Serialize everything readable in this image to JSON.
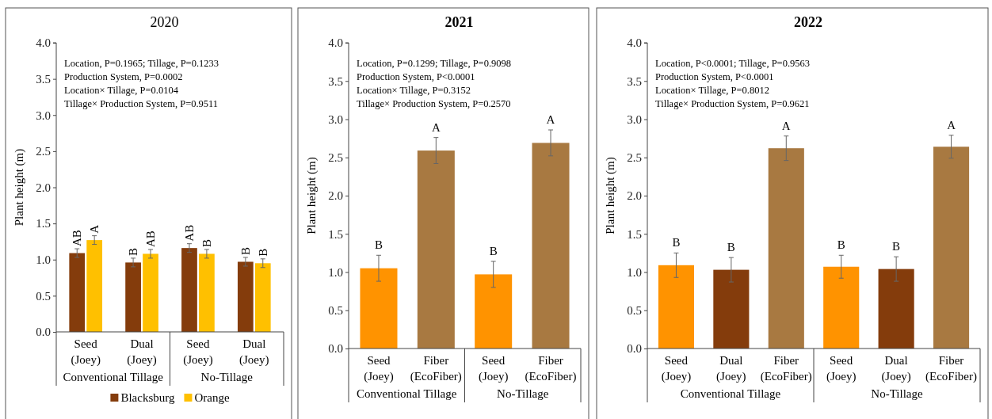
{
  "chart_data": [
    {
      "type": "bar",
      "title": "2020",
      "ylabel": "Plant height (m)",
      "categories": [
        "Seed (Joey)",
        "Dual (Joey)",
        "Seed (Joey)",
        "Dual (Joey)"
      ],
      "ylim": [
        0,
        4
      ],
      "yticks": [
        {
          "value": 0,
          "label": "0.0"
        },
        {
          "value": 0.5,
          "label": "0.5"
        },
        {
          "value": 1,
          "label": "1.0"
        },
        {
          "value": 1.5,
          "label": "1.5"
        },
        {
          "value": 2,
          "label": "2.0"
        },
        {
          "value": 2.5,
          "label": "2.5"
        },
        {
          "value": 3,
          "label": "3.0"
        },
        {
          "value": 3.5,
          "label": "3.5"
        },
        {
          "value": 4,
          "label": "4.0"
        }
      ],
      "legend": "bottom",
      "series": [
        {
          "name": "Blacksburg",
          "color": "#843c0c",
          "values": [
            1.09,
            0.96,
            1.16,
            0.97
          ],
          "errors": [
            0.06,
            0.06,
            0.06,
            0.06
          ],
          "value_labels": [
            "AB",
            "B",
            "AB",
            "B"
          ]
        },
        {
          "name": "Orange",
          "color": "#ffc000",
          "values": [
            1.27,
            1.08,
            1.08,
            0.95
          ],
          "errors": [
            0.06,
            0.06,
            0.06,
            0.06
          ],
          "value_labels": [
            "A",
            "AB",
            "B",
            "B"
          ]
        }
      ],
      "annotations": [
        "Location, P=0.1965; Tillage, P=0.1233",
        "Production System, P=0.0002",
        "Location× Tillage, P=0.0104",
        "Tillage× Production System, P=0.9511",
        "Conventional Tillage",
        "No-Tillage"
      ]
    },
    {
      "type": "bar",
      "title": "2021",
      "ylabel": "Plant height (m)",
      "categories": [
        "Seed (Joey)",
        "Fiber (EcoFiber)",
        "Seed (Joey)",
        "Fiber (EcoFiber)"
      ],
      "ylim": [
        0,
        4
      ],
      "yticks": [
        {
          "value": 0,
          "label": "0.0"
        },
        {
          "value": 0.5,
          "label": "0.5"
        },
        {
          "value": 1,
          "label": "1.0"
        },
        {
          "value": 1.5,
          "label": "1.5"
        },
        {
          "value": 2,
          "label": "2.0"
        },
        {
          "value": 2.5,
          "label": "2.5"
        },
        {
          "value": 3,
          "label": "3.0"
        },
        {
          "value": 3.5,
          "label": "3.5"
        },
        {
          "value": 4,
          "label": "4.0"
        }
      ],
      "series": [
        {
          "colors": [
            "#ff9300",
            "#a87941",
            "#ff9300",
            "#a87941"
          ],
          "values": [
            1.05,
            2.59,
            0.97,
            2.69
          ],
          "errors": [
            0.17,
            0.17,
            0.17,
            0.17
          ],
          "value_labels": [
            "B",
            "A",
            "B",
            "A"
          ]
        }
      ],
      "annotations": [
        "Location, P=0.1299; Tillage, P=0.9098",
        "Production System, P<0.0001",
        "Location× Tillage, P=0.3152",
        "Tillage× Production System, P=0.2570",
        "Conventional Tillage",
        "No-Tillage"
      ]
    },
    {
      "type": "bar",
      "title": "2022",
      "ylabel": "Plant height (m)",
      "categories": [
        "Seed (Joey)",
        "Dual (Joey)",
        "Fiber (EcoFiber)",
        "Seed (Joey)",
        "Dual (Joey)",
        "Fiber (EcoFiber)"
      ],
      "ylim": [
        0,
        4
      ],
      "yticks": [
        {
          "value": 0,
          "label": "0.0"
        },
        {
          "value": 0.5,
          "label": "0.5"
        },
        {
          "value": 1,
          "label": "1.0"
        },
        {
          "value": 1.5,
          "label": "1.5"
        },
        {
          "value": 2,
          "label": "2.0"
        },
        {
          "value": 2.5,
          "label": "2.5"
        },
        {
          "value": 3,
          "label": "3.0"
        },
        {
          "value": 3.5,
          "label": "3.5"
        },
        {
          "value": 4,
          "label": "4.0"
        }
      ],
      "series": [
        {
          "colors": [
            "#ff9300",
            "#843c0c",
            "#a87941",
            "#ff9300",
            "#843c0c",
            "#a87941"
          ],
          "values": [
            1.09,
            1.03,
            2.62,
            1.07,
            1.04,
            2.64
          ],
          "errors": [
            0.16,
            0.16,
            0.16,
            0.15,
            0.16,
            0.15
          ],
          "value_labels": [
            "B",
            "B",
            "A",
            "B",
            "B",
            "A"
          ]
        }
      ],
      "annotations": [
        "Location, P<0.0001; Tillage, P=0.9563",
        "Production System, P<0.0001",
        "Location× Tillage, P=0.8012",
        "Tillage× Production System, P=0.9621",
        "Conventional Tillage",
        "No-Tillage"
      ]
    }
  ]
}
